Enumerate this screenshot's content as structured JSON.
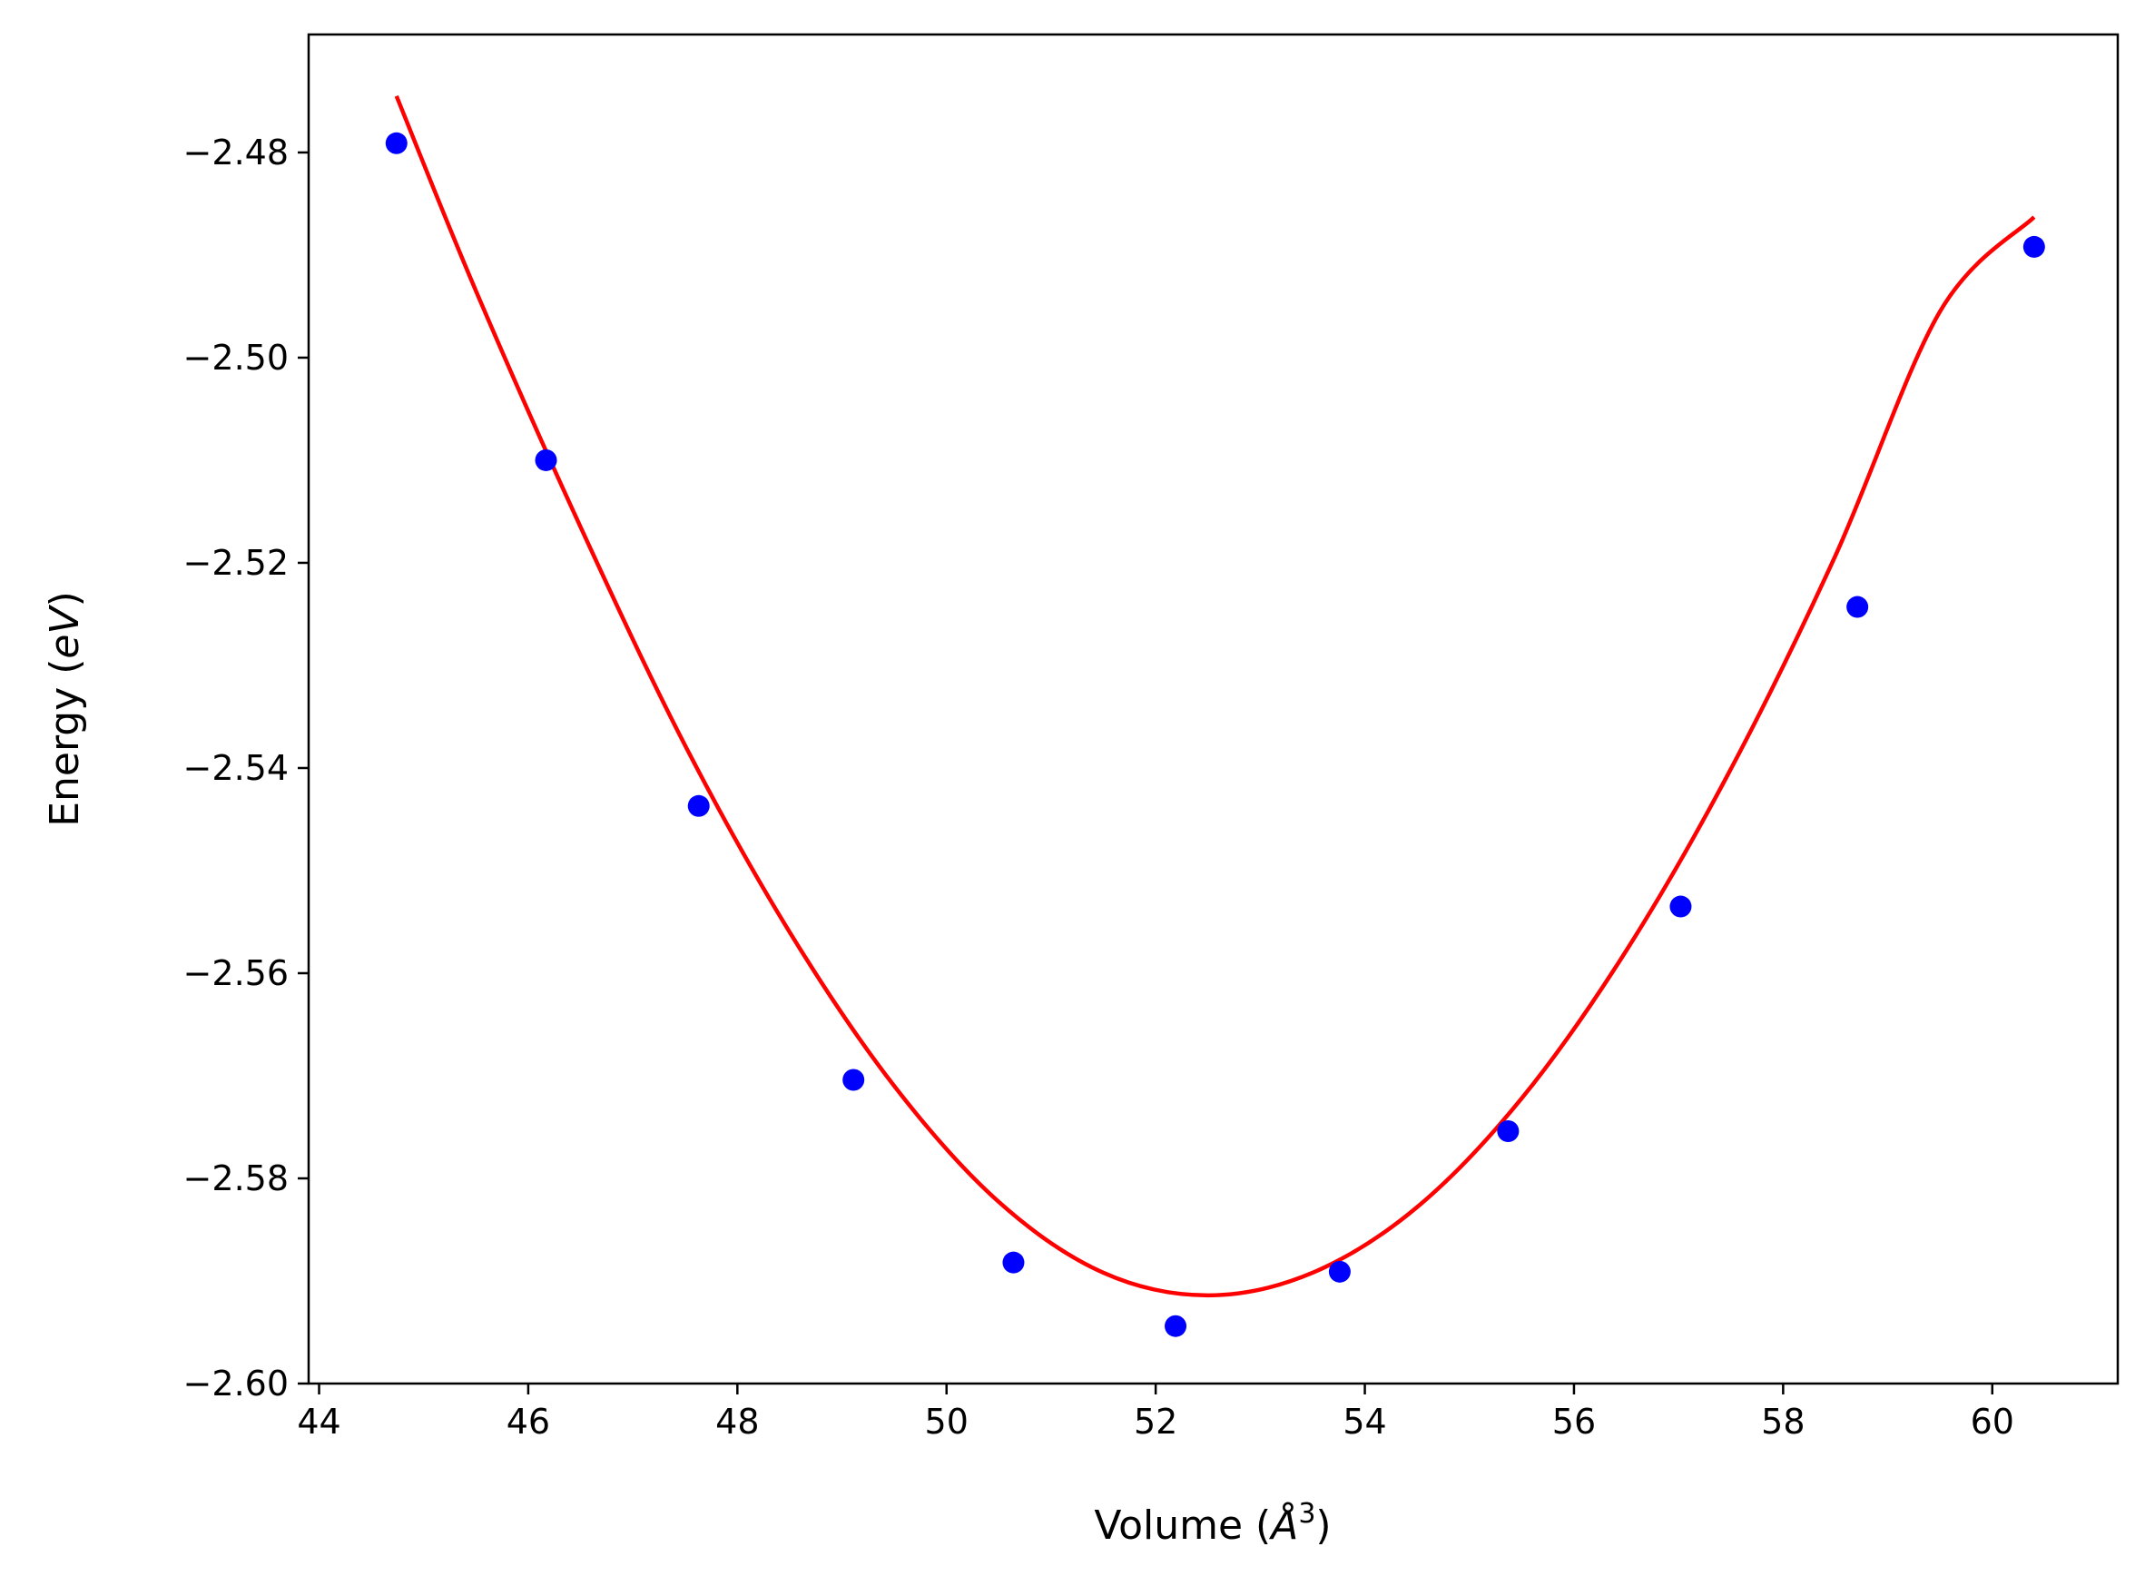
{
  "chart_data": {
    "type": "scatter",
    "xlabel": {
      "prefix": "Volume (",
      "var": "Å",
      "sup": "3",
      "suffix": ")"
    },
    "ylabel": {
      "prefix": "Energy (",
      "var": "eV",
      "suffix": ")"
    },
    "xlim": [
      43.9,
      61.2
    ],
    "ylim": [
      -2.6,
      -2.4685
    ],
    "xticks": [
      44,
      46,
      48,
      50,
      52,
      54,
      56,
      58,
      60
    ],
    "xtick_labels": [
      "44",
      "46",
      "48",
      "50",
      "52",
      "54",
      "56",
      "58",
      "60"
    ],
    "yticks": [
      -2.6,
      -2.58,
      -2.56,
      -2.54,
      -2.52,
      -2.5,
      -2.48
    ],
    "ytick_labels": [
      "−2.60",
      "−2.58",
      "−2.56",
      "−2.54",
      "−2.52",
      "−2.50",
      "−2.48"
    ],
    "grid": false,
    "series": [
      {
        "kind": "points",
        "color": "#0000ff",
        "x": [
          44.74,
          46.17,
          47.63,
          49.11,
          50.64,
          52.19,
          53.76,
          55.37,
          57.02,
          58.71,
          60.4
        ],
        "y": [
          -2.4791,
          -2.51,
          -2.5437,
          -2.5704,
          -2.5882,
          -2.5944,
          -2.5891,
          -2.5754,
          -2.5535,
          -2.5243,
          -2.4892
        ]
      },
      {
        "kind": "line",
        "color": "#ff0000",
        "x": [
          44.74,
          45.5,
          46.5,
          47.5,
          48.5,
          49.5,
          50.5,
          51.5,
          52.5,
          53.5,
          54.5,
          55.5,
          56.5,
          57.5,
          58.5,
          59.5,
          60.4
        ],
        "y": [
          -2.4745,
          -2.4935,
          -2.5165,
          -2.5378,
          -2.556,
          -2.571,
          -2.5823,
          -2.5892,
          -2.5914,
          -2.5892,
          -2.5828,
          -2.5722,
          -2.5578,
          -2.5401,
          -2.5193,
          -2.4955,
          -2.4863
        ]
      }
    ]
  }
}
